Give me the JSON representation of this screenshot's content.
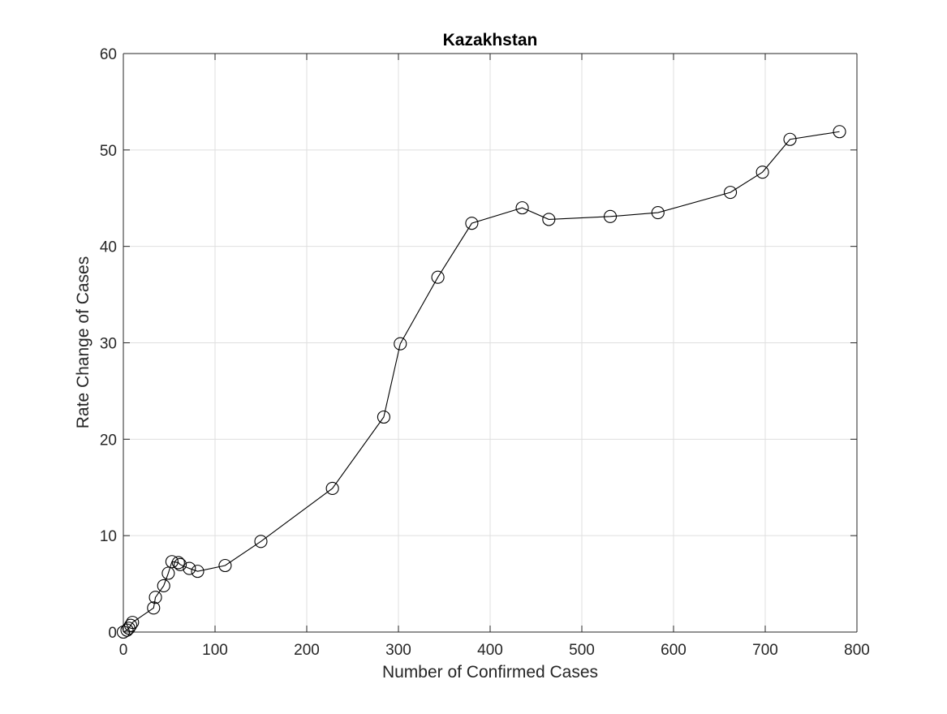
{
  "chart_data": {
    "type": "line",
    "title": "Kazakhstan",
    "xlabel": "Number of Confirmed Cases",
    "ylabel": "Rate Change of Cases",
    "xlim": [
      0,
      800
    ],
    "ylim": [
      0,
      60
    ],
    "xticks": [
      0,
      100,
      200,
      300,
      400,
      500,
      600,
      700,
      800
    ],
    "yticks": [
      0,
      10,
      20,
      30,
      40,
      50,
      60
    ],
    "grid": true,
    "marker": "circle",
    "series": [
      {
        "x": [
          0,
          4,
          6,
          8,
          10,
          33,
          35,
          44,
          49,
          53,
          60,
          62,
          72,
          81,
          111,
          150,
          228,
          284,
          302,
          343,
          380,
          435,
          464,
          531,
          583,
          662,
          697,
          727,
          781
        ],
        "y": [
          0,
          0.2,
          0.4,
          0.7,
          1.0,
          2.5,
          3.6,
          4.8,
          6.1,
          7.3,
          7.2,
          7.0,
          6.6,
          6.3,
          6.9,
          9.4,
          14.9,
          22.3,
          29.9,
          36.8,
          42.4,
          44.0,
          42.8,
          43.1,
          43.5,
          45.6,
          47.7,
          51.1,
          51.9
        ]
      }
    ],
    "colors": {
      "line": "#000000",
      "axes": "#262626",
      "grid": "#dfdfdf",
      "background": "#ffffff"
    }
  }
}
